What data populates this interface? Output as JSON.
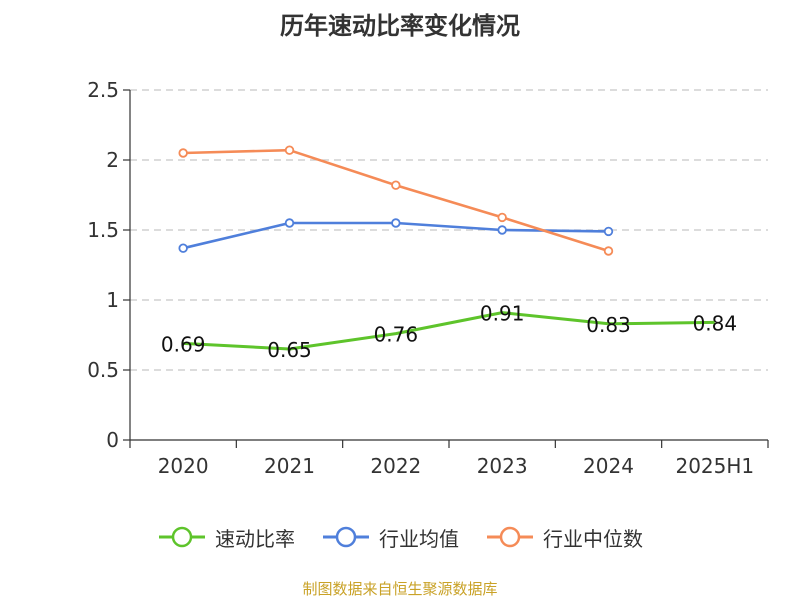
{
  "chart_data": {
    "type": "line",
    "title": "历年速动比率变化情况",
    "xlabel": "",
    "ylabel": "",
    "categories": [
      "2020",
      "2021",
      "2022",
      "2023",
      "2024",
      "2025H1"
    ],
    "ylim": [
      0,
      2.5
    ],
    "yticks": [
      "0",
      "0.5",
      "1",
      "1.5",
      "2",
      "2.5"
    ],
    "grid": true,
    "legend_position": "bottom",
    "series": [
      {
        "name": "速动比率",
        "color": "#5ec42b",
        "values": [
          0.69,
          0.65,
          0.76,
          0.91,
          0.83,
          0.84
        ],
        "labels": [
          "0.69",
          "0.65",
          "0.76",
          "0.91",
          "0.83",
          "0.84"
        ],
        "show_labels": true
      },
      {
        "name": "行业均值",
        "color": "#4f7fdb",
        "values": [
          1.37,
          1.55,
          1.55,
          1.5,
          1.49,
          null
        ],
        "show_labels": false
      },
      {
        "name": "行业中位数",
        "color": "#f58b57",
        "values": [
          2.05,
          2.07,
          1.82,
          1.59,
          1.35,
          null
        ],
        "show_labels": false
      }
    ]
  },
  "legend": {
    "items": [
      {
        "label": "速动比率",
        "color": "#5ec42b"
      },
      {
        "label": "行业均值",
        "color": "#4f7fdb"
      },
      {
        "label": "行业中位数",
        "color": "#f58b57"
      }
    ]
  },
  "source_note": "制图数据来自恒生聚源数据库"
}
